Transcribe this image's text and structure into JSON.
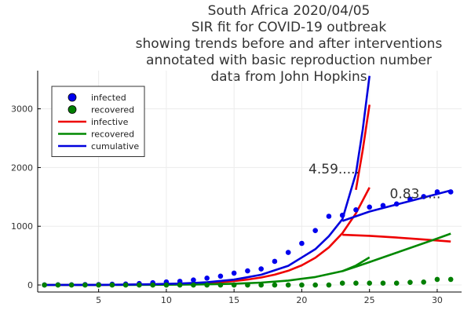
{
  "chart_data": {
    "type": "line",
    "title_lines": [
      "South Africa 2020/04/05",
      "SIR fit for COVID-19 outbreak",
      "showing trends before and after interventions",
      "annotated with basic reproduction number",
      "data from John Hopkins"
    ],
    "xlabel": "",
    "ylabel": "",
    "xlim": [
      0.5,
      31.8
    ],
    "ylim": [
      -120,
      3650
    ],
    "x_ticks": [
      5,
      10,
      15,
      20,
      25,
      30
    ],
    "y_ticks": [
      0,
      1000,
      2000,
      3000
    ],
    "grid": true,
    "legend_position": "top-left",
    "legend": [
      {
        "label": "infected",
        "kind": "marker",
        "color": "#0000ee"
      },
      {
        "label": "recovered",
        "kind": "marker",
        "color": "#007f00"
      },
      {
        "label": "infective",
        "kind": "line",
        "color": "#ee0000"
      },
      {
        "label": "recovered",
        "kind": "line",
        "color": "#008800"
      },
      {
        "label": "cumulative",
        "kind": "line",
        "color": "#0000dd"
      }
    ],
    "scatter_series": [
      {
        "name": "infected",
        "color": "#0000ee",
        "x": [
          1,
          2,
          3,
          4,
          5,
          6,
          7,
          8,
          9,
          10,
          11,
          12,
          13,
          14,
          15,
          16,
          17,
          18,
          19,
          20,
          21,
          22,
          23,
          24,
          25,
          26,
          27,
          28,
          29,
          30,
          31
        ],
        "y": [
          1,
          3,
          3,
          7,
          7,
          13,
          16,
          24,
          38,
          51,
          62,
          85,
          116,
          150,
          202,
          240,
          274,
          402,
          554,
          709,
          927,
          1170,
          1187,
          1280,
          1326,
          1353,
          1380,
          1462,
          1505,
          1585,
          1585
        ]
      },
      {
        "name": "recovered",
        "color": "#007f00",
        "x": [
          1,
          2,
          3,
          4,
          5,
          6,
          7,
          8,
          9,
          10,
          11,
          12,
          13,
          14,
          15,
          16,
          17,
          18,
          19,
          20,
          21,
          22,
          23,
          24,
          25,
          26,
          27,
          28,
          29,
          30,
          31
        ],
        "y": [
          0,
          0,
          0,
          0,
          0,
          0,
          0,
          0,
          0,
          0,
          0,
          0,
          0,
          0,
          0,
          0,
          0,
          0,
          0,
          0,
          0,
          0,
          31,
          31,
          31,
          31,
          31,
          45,
          50,
          95,
          95
        ]
      }
    ],
    "line_series": [
      {
        "name": "infective (before)",
        "color": "#ee0000",
        "x": [
          1,
          2,
          3,
          4,
          5,
          6,
          7,
          8,
          9,
          10,
          11,
          12,
          13,
          14,
          15,
          16,
          17,
          18,
          19,
          20,
          21,
          22,
          23,
          24,
          25
        ],
        "y": [
          0,
          0,
          1,
          1,
          2,
          3,
          4,
          6,
          9,
          13,
          18,
          25,
          34,
          48,
          66,
          92,
          127,
          175,
          242,
          335,
          463,
          640,
          882,
          1220,
          1660
        ]
      },
      {
        "name": "infective (after)",
        "color": "#ee0000",
        "x": [
          23,
          25,
          27,
          29,
          31
        ],
        "y": [
          855,
          837,
          808,
          774,
          740
        ]
      },
      {
        "name": "infective (before, extended)",
        "color": "#ee0000",
        "x": [
          24,
          24.5,
          25
        ],
        "y": [
          1620,
          2300,
          3070
        ]
      },
      {
        "name": "recovered (before)",
        "color": "#008800",
        "x": [
          1,
          3,
          5,
          7,
          9,
          11,
          13,
          15,
          17,
          19,
          21,
          23,
          24,
          25
        ],
        "y": [
          0,
          0,
          0,
          1,
          3,
          6,
          11,
          22,
          41,
          75,
          135,
          235,
          330,
          470
        ]
      },
      {
        "name": "recovered (after)",
        "color": "#008800",
        "x": [
          23,
          24,
          25,
          26,
          27,
          28,
          29,
          30,
          31
        ],
        "y": [
          235,
          310,
          390,
          470,
          550,
          630,
          710,
          790,
          875
        ]
      },
      {
        "name": "cumulative (before)",
        "color": "#0000dd",
        "x": [
          1,
          3,
          5,
          7,
          9,
          11,
          13,
          15,
          17,
          19,
          21,
          22,
          23,
          24,
          24.5,
          25
        ],
        "y": [
          0,
          1,
          2,
          5,
          13,
          24,
          46,
          91,
          174,
          326,
          610,
          830,
          1120,
          1900,
          2650,
          3560
        ]
      },
      {
        "name": "cumulative (after)",
        "color": "#0000dd",
        "x": [
          23,
          24,
          25,
          26,
          27,
          28,
          29,
          30,
          31
        ],
        "y": [
          1090,
          1170,
          1250,
          1310,
          1370,
          1430,
          1490,
          1550,
          1610
        ]
      }
    ],
    "annotations": [
      {
        "text": "4.59.....",
        "x": 20.5,
        "y": 1900
      },
      {
        "text": "0.83.....",
        "x": 26.5,
        "y": 1480
      }
    ]
  }
}
